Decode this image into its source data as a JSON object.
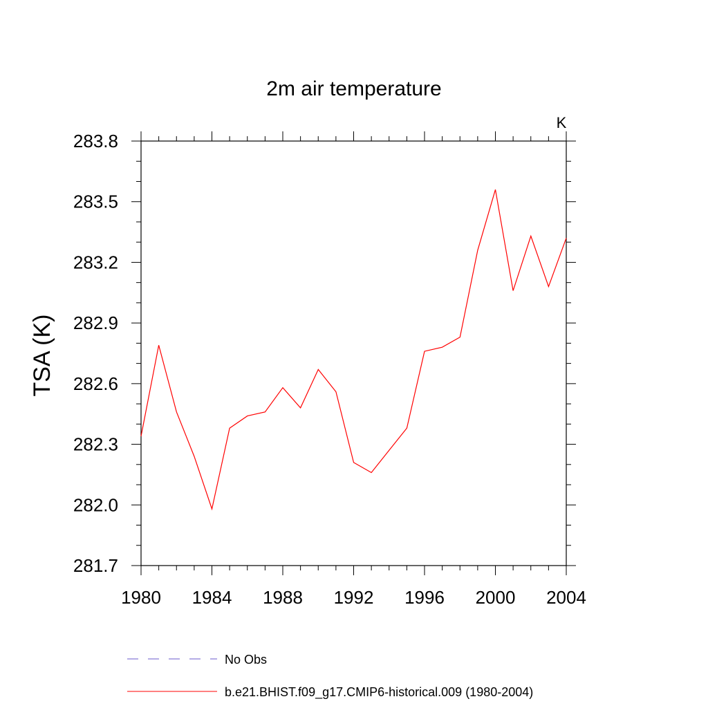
{
  "chart_data": {
    "type": "line",
    "title": "2m air temperature",
    "units": "K",
    "xlabel": "",
    "ylabel": "TSA  (K)",
    "xlim": [
      1980,
      2004
    ],
    "ylim": [
      281.7,
      283.8
    ],
    "xticks": [
      1980,
      1984,
      1988,
      1992,
      1996,
      2000,
      2004
    ],
    "xtick_labels": [
      "1980",
      "1984",
      "1988",
      "1992",
      "1996",
      "2000",
      "2004"
    ],
    "yticks": [
      281.7,
      282.0,
      282.3,
      282.6,
      282.9,
      283.2,
      283.5,
      283.8
    ],
    "ytick_labels": [
      "281.7",
      "282.0",
      "282.3",
      "282.6",
      "282.9",
      "283.2",
      "283.5",
      "283.8"
    ],
    "series": [
      {
        "name": "b.e21.BHIST.f09_g17.CMIP6-historical.009 (1980-2004)",
        "color": "#ff0000",
        "style": "solid",
        "x": [
          1980,
          1981,
          1982,
          1983,
          1984,
          1985,
          1986,
          1987,
          1988,
          1989,
          1990,
          1991,
          1992,
          1993,
          1994,
          1995,
          1996,
          1997,
          1998,
          1999,
          2000,
          2001,
          2002,
          2003,
          2004
        ],
        "values": [
          282.34,
          282.79,
          282.46,
          282.24,
          281.98,
          282.38,
          282.44,
          282.46,
          282.58,
          282.48,
          282.67,
          282.56,
          282.21,
          282.16,
          282.27,
          282.38,
          282.76,
          282.78,
          282.83,
          283.26,
          283.56,
          283.06,
          283.33,
          283.08,
          283.32
        ]
      }
    ],
    "legend": [
      {
        "label": "No Obs",
        "color": "#6a5acd",
        "style": "dashed"
      },
      {
        "label": "b.e21.BHIST.f09_g17.CMIP6-historical.009 (1980-2004)",
        "color": "#ff0000",
        "style": "solid"
      }
    ],
    "grid": false,
    "legend_position": "bottom"
  }
}
